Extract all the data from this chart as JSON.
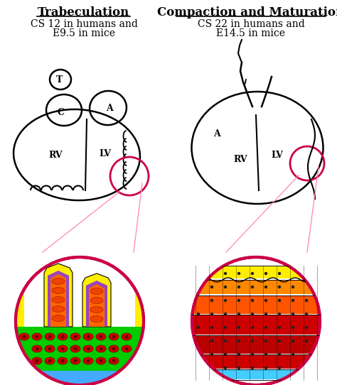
{
  "title_left": "Trabeculation",
  "title_right": "Compaction and Maturation",
  "subtitle_left1": "CS 12 in humans and",
  "subtitle_left2": "E9.5 in mice",
  "subtitle_right1": "CS 22 in humans and",
  "subtitle_right2": "E14.5 in mice",
  "bg_color": "#ffffff",
  "title_fontsize": 12,
  "subtitle_fontsize": 10,
  "label_fontsize": 9,
  "pink": "#CC0044",
  "pink_light": "#FF88AA",
  "black": "#000000",
  "yellow": "#FFEE00",
  "orange": "#FF7700",
  "red": "#DD0000",
  "green": "#00BB00",
  "blue_light": "#66CCFF",
  "purple": "#9966BB"
}
